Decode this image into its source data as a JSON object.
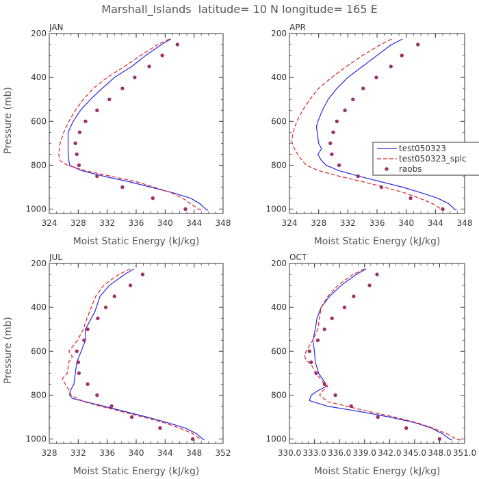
{
  "chart_data": {
    "type": "line",
    "title": "Marshall_Islands  latitude= 10 N longitude= 165 E",
    "legend": {
      "placement": "right-middle",
      "panel": "APR",
      "entries": [
        "test050323",
        "test050323_splc",
        "raobs"
      ]
    },
    "series_styles": [
      {
        "name": "test050323",
        "color": "#2828e0",
        "style": "solid"
      },
      {
        "name": "test050323_splc",
        "color": "#e02020",
        "style": "dashed"
      },
      {
        "name": "raobs",
        "color": "#a0306a",
        "style": "points"
      }
    ],
    "panels": [
      {
        "label": "JAN",
        "xlabel": "Moist Static Energy (kJ/kg)",
        "ylabel": "Pressure (mb)",
        "xlim": [
          324,
          348
        ],
        "ylim": [
          1020,
          200
        ],
        "xticks": [
          324,
          328,
          332,
          336,
          340,
          344,
          348
        ],
        "xtick_labels": [
          "324",
          "328",
          "332",
          "336",
          "340",
          "344",
          "348"
        ],
        "yticks": [
          200,
          400,
          600,
          800,
          1000
        ],
        "ytick_labels": [
          "200",
          "400",
          "600",
          "800",
          "1000"
        ],
        "series": [
          {
            "name": "test050323",
            "p": [
              225,
              250,
              300,
              350,
              400,
              450,
              500,
              550,
              600,
              650,
              700,
              750,
              800,
              825,
              850,
              875,
              900,
              925,
              950,
              975,
              1000,
              1005
            ],
            "v": [
              340.8,
              339.5,
              337.3,
              335.4,
              333.0,
              331.3,
              329.7,
              328.3,
              327.3,
              326.6,
              326.6,
              326.6,
              326.8,
              328.5,
              331.5,
              335.0,
              338.0,
              341.0,
              343.5,
              344.8,
              345.6,
              345.9
            ]
          },
          {
            "name": "test050323_splc",
            "p": [
              225,
              250,
              300,
              350,
              400,
              450,
              500,
              550,
              600,
              650,
              700,
              750,
              780,
              800,
              825,
              850,
              875,
              900,
              925,
              950,
              975,
              1000,
              1005
            ],
            "v": [
              340.6,
              339.0,
              336.6,
              334.4,
              332.0,
              330.1,
              328.7,
              327.6,
              326.7,
              326.0,
              325.5,
              325.3,
              325.5,
              326.5,
              329.0,
              332.5,
              336.0,
              338.5,
              340.8,
              342.4,
              343.5,
              344.6,
              345.0
            ]
          },
          {
            "name": "raobs",
            "type": "points",
            "p": [
              250,
              300,
              350,
              400,
              450,
              500,
              550,
              600,
              650,
              700,
              750,
              800,
              850,
              900,
              950,
              1000
            ],
            "v": [
              341.7,
              339.6,
              337.8,
              335.8,
              334.1,
              332.3,
              330.6,
              329.0,
              328.2,
              327.6,
              327.8,
              328.1,
              330.6,
              334.1,
              338.3,
              342.8
            ]
          }
        ]
      },
      {
        "label": "APR",
        "xlabel": "Moist Static Energy (kJ/kg)",
        "ylabel": "",
        "xlim": [
          324,
          348
        ],
        "ylim": [
          1020,
          200
        ],
        "xticks": [
          324,
          328,
          332,
          336,
          340,
          344,
          348
        ],
        "xtick_labels": [
          "324",
          "328",
          "332",
          "336",
          "340",
          "344",
          "348"
        ],
        "yticks": [
          200,
          400,
          600,
          800,
          1000
        ],
        "ytick_labels": [
          "200",
          "400",
          "600",
          "800",
          "1000"
        ],
        "series": [
          {
            "name": "test050323",
            "p": [
              225,
              250,
              300,
              350,
              400,
              450,
              500,
              550,
              600,
              625,
              650,
              700,
              725,
              750,
              775,
              800,
              825,
              850,
              875,
              900,
              925,
              950,
              975,
              1000,
              1005
            ],
            "v": [
              339.5,
              338.0,
              336.0,
              334.0,
              332.0,
              330.5,
              329.3,
              328.5,
              327.9,
              327.7,
              327.8,
              328.0,
              328.4,
              327.9,
              328.3,
              329.0,
              330.8,
              333.5,
              336.5,
              339.5,
              342.0,
              344.3,
              345.8,
              346.6,
              346.9
            ]
          },
          {
            "name": "test050323_splc",
            "p": [
              225,
              250,
              300,
              350,
              400,
              450,
              500,
              550,
              600,
              650,
              690,
              720,
              760,
              800,
              825,
              850,
              875,
              900,
              925,
              950,
              975,
              1000,
              1005
            ],
            "v": [
              338.0,
              336.5,
              334.0,
              331.8,
              329.8,
              328.0,
              326.8,
              325.8,
              325.0,
              324.5,
              324.3,
              324.6,
              325.3,
              326.3,
              328.0,
              330.8,
              334.0,
              337.0,
              339.7,
              341.8,
              343.6,
              344.8,
              345.2
            ]
          },
          {
            "name": "raobs",
            "type": "points",
            "p": [
              250,
              300,
              350,
              400,
              450,
              500,
              550,
              600,
              650,
              700,
              750,
              800,
              850,
              900,
              950,
              1000
            ],
            "v": [
              341.6,
              339.4,
              337.9,
              335.9,
              334.1,
              332.7,
              331.6,
              330.5,
              330.0,
              329.6,
              329.8,
              330.8,
              333.4,
              336.6,
              340.6,
              345.0
            ]
          }
        ]
      },
      {
        "label": "JUL",
        "xlabel": "Moist Static Energy (kJ/kg)",
        "ylabel": "Pressure (mb)",
        "xlim": [
          328,
          352
        ],
        "ylim": [
          1020,
          200
        ],
        "xticks": [
          328,
          332,
          336,
          340,
          344,
          348,
          352
        ],
        "xtick_labels": [
          "328",
          "332",
          "336",
          "340",
          "344",
          "348",
          "352"
        ],
        "yticks": [
          200,
          400,
          600,
          800,
          1000
        ],
        "ytick_labels": [
          "200",
          "400",
          "600",
          "800",
          "1000"
        ],
        "series": [
          {
            "name": "test050323",
            "p": [
              225,
              250,
              300,
              350,
              400,
              420,
              450,
              500,
              550,
              600,
              650,
              700,
              750,
              780,
              800,
              815,
              830,
              850,
              875,
              900,
              925,
              950,
              975,
              1000,
              1005
            ],
            "v": [
              339.7,
              338.4,
              336.3,
              335.0,
              334.5,
              334.3,
              333.8,
              333.0,
              333.0,
              332.4,
              331.8,
              331.6,
              331.4,
              330.9,
              330.8,
              331.2,
              333.0,
              335.5,
              338.5,
              341.5,
              344.3,
              346.8,
              348.3,
              349.2,
              349.4
            ]
          },
          {
            "name": "test050323_splc",
            "p": [
              225,
              250,
              300,
              350,
              400,
              450,
              500,
              550,
              580,
              600,
              625,
              650,
              700,
              725,
              750,
              780,
              800,
              830,
              850,
              875,
              900,
              925,
              950,
              975,
              1000
            ],
            "v": [
              339.2,
              337.6,
              335.5,
              334.4,
              333.8,
              333.2,
              332.7,
              331.9,
              331.2,
              330.7,
              331.2,
              330.7,
              330.5,
              329.8,
              330.2,
              330.8,
              331.0,
              332.8,
              335.0,
              338.0,
              341.0,
              343.8,
              346.0,
              347.8,
              348.8
            ]
          },
          {
            "name": "raobs",
            "type": "points",
            "p": [
              250,
              300,
              350,
              400,
              450,
              500,
              550,
              600,
              650,
              700,
              750,
              800,
              850,
              900,
              950,
              1000
            ],
            "v": [
              340.9,
              339.2,
              337.0,
              335.8,
              334.7,
              333.3,
              332.8,
              331.8,
              332.0,
              332.1,
              333.3,
              334.6,
              336.6,
              339.4,
              343.3,
              347.8
            ]
          }
        ]
      },
      {
        "label": "OCT",
        "xlabel": "Moist Static Energy (kJ/kg)",
        "ylabel": "",
        "xlim": [
          330,
          351
        ],
        "ylim": [
          1020,
          200
        ],
        "xticks": [
          330,
          333,
          336,
          339,
          342,
          345,
          348,
          351
        ],
        "xtick_labels": [
          "330.0",
          "333.0",
          "336.0",
          "339.0",
          "342.0",
          "345.0",
          "348.0",
          "351.0"
        ],
        "yticks": [
          200,
          400,
          600,
          800,
          1000
        ],
        "ytick_labels": [
          "200",
          "400",
          "600",
          "800",
          "1000"
        ],
        "series": [
          {
            "name": "test050323",
            "p": [
              225,
              250,
              300,
              350,
              400,
              450,
              500,
              550,
              600,
              650,
              700,
              740,
              760,
              780,
              800,
              825,
              850,
              875,
              900,
              925,
              950,
              975,
              1000,
              1005
            ],
            "v": [
              339.2,
              338.0,
              336.2,
              334.8,
              333.8,
              333.3,
              333.1,
              332.8,
              333.0,
              333.1,
              333.5,
              334.2,
              334.4,
              333.4,
              332.6,
              332.4,
              334.5,
              338.5,
              342.0,
              345.0,
              347.0,
              348.3,
              349.2,
              349.5
            ]
          },
          {
            "name": "test050323_splc",
            "p": [
              225,
              250,
              300,
              350,
              400,
              450,
              500,
              550,
              600,
              620,
              640,
              660,
              700,
              740,
              760,
              780,
              800,
              830,
              850,
              875,
              900,
              925,
              950,
              975,
              1000,
              1005
            ],
            "v": [
              339.0,
              337.6,
              335.8,
              334.6,
              333.8,
              333.6,
              333.4,
              332.8,
              332.0,
              331.8,
              332.0,
              332.6,
              333.2,
              334.0,
              334.6,
              334.0,
              333.6,
              334.6,
              336.8,
              339.6,
              342.6,
              345.2,
              347.2,
              348.8,
              350.0,
              350.5
            ]
          },
          {
            "name": "raobs",
            "type": "points",
            "p": [
              250,
              300,
              350,
              400,
              450,
              500,
              550,
              600,
              650,
              700,
              750,
              800,
              850,
              900,
              950,
              1000
            ],
            "v": [
              340.5,
              339.6,
              337.7,
              336.6,
              335.1,
              334.2,
              333.4,
              332.4,
              332.6,
              333.2,
              334.2,
              335.5,
              337.4,
              340.6,
              344.0,
              348.0
            ]
          }
        ]
      }
    ]
  }
}
